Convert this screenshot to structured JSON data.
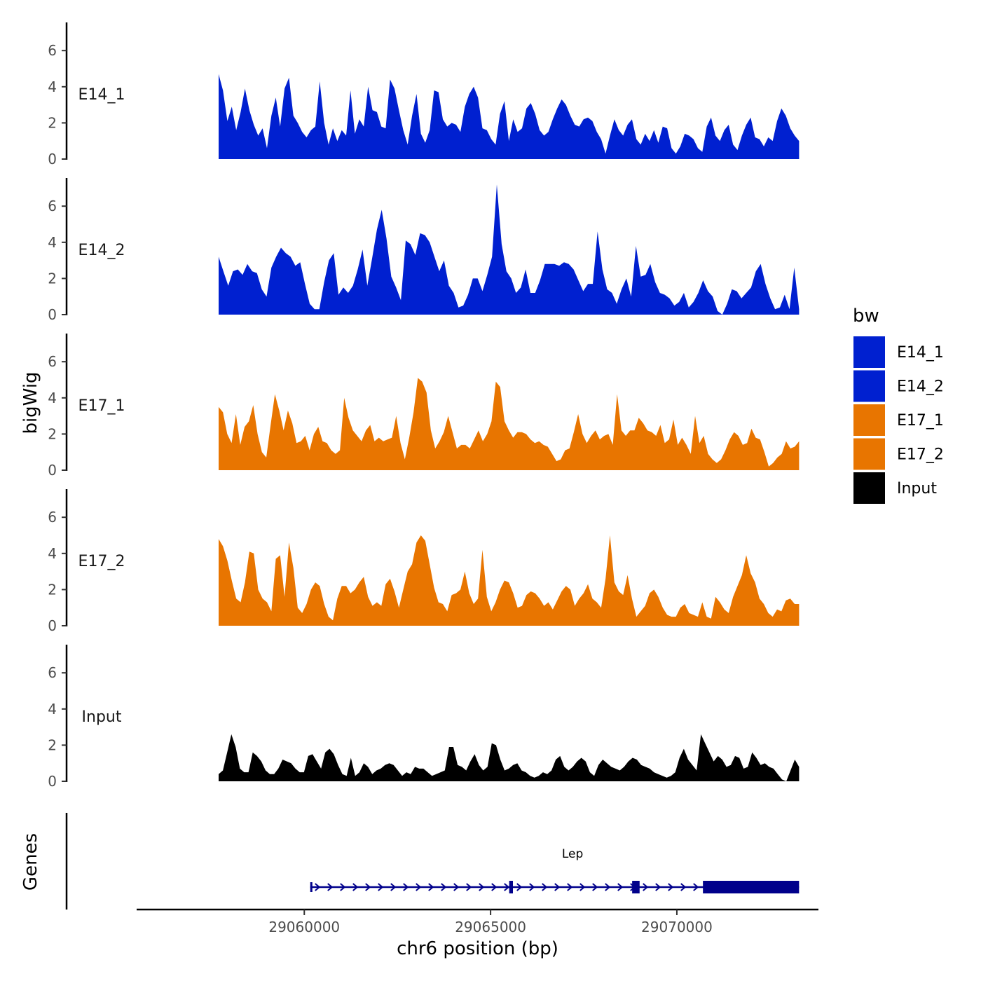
{
  "chart_data": {
    "type": "area",
    "ylabel": "bigWig",
    "xlabel": "chr6 position (bp)",
    "genes_label": "Genes",
    "xlim": [
      29055500,
      29073800
    ],
    "ylim": [
      0,
      7.5
    ],
    "yticks": [
      0,
      2,
      4,
      6
    ],
    "xticks": [
      {
        "value": 29060000,
        "label": "29060000"
      },
      {
        "value": 29065000,
        "label": "29065000"
      },
      {
        "value": 29070000,
        "label": "29070000"
      }
    ],
    "data_start": 29057700,
    "data_end": 29073280,
    "legend": {
      "title": "bw",
      "entries": [
        {
          "name": "E14_1",
          "color": "#0020D0"
        },
        {
          "name": "E14_2",
          "color": "#0020D0"
        },
        {
          "name": "E17_1",
          "color": "#E87500"
        },
        {
          "name": "E17_2",
          "color": "#E87500"
        },
        {
          "name": "Input",
          "color": "#000000"
        }
      ]
    },
    "series": [
      {
        "name": "E14_1",
        "label": "E14_1",
        "color": "#0020D0",
        "values": [
          4.7,
          3.8,
          2.1,
          2.9,
          1.6,
          2.6,
          3.9,
          2.7,
          1.9,
          1.3,
          1.7,
          0.6,
          2.4,
          3.4,
          1.8,
          3.9,
          4.5,
          2.4,
          2.0,
          1.5,
          1.2,
          1.6,
          1.8,
          4.3,
          2.0,
          0.8,
          1.7,
          1.0,
          1.6,
          1.3,
          3.8,
          1.4,
          2.2,
          1.8,
          4.0,
          2.7,
          2.6,
          1.8,
          1.7,
          4.4,
          3.9,
          2.7,
          1.6,
          0.8,
          2.4,
          3.6,
          1.4,
          0.9,
          1.6,
          3.8,
          3.7,
          2.2,
          1.8,
          2.0,
          1.9,
          1.5,
          2.9,
          3.6,
          4.0,
          3.4,
          1.7,
          1.6,
          1.1,
          0.8,
          2.5,
          3.2,
          1.0,
          2.2,
          1.5,
          1.7,
          2.8,
          3.1,
          2.5,
          1.6,
          1.3,
          1.5,
          2.2,
          2.8,
          3.3,
          3.0,
          2.4,
          1.9,
          1.8,
          2.2,
          2.3,
          2.1,
          1.5,
          1.1,
          0.3,
          1.3,
          2.2,
          1.6,
          1.3,
          1.9,
          2.2,
          1.1,
          0.8,
          1.4,
          1.0,
          1.6,
          0.9,
          1.8,
          1.7,
          0.6,
          0.3,
          0.7,
          1.4,
          1.3,
          1.1,
          0.6,
          0.4,
          1.8,
          2.3,
          1.3,
          1.0,
          1.6,
          1.9,
          0.8,
          0.5,
          1.3,
          1.9,
          2.3,
          1.2,
          1.1,
          0.7,
          1.2,
          1.0,
          2.1,
          2.8,
          2.4,
          1.7,
          1.3,
          1.0
        ]
      },
      {
        "name": "E14_2",
        "label": "E14_2",
        "color": "#0020D0",
        "values": [
          3.2,
          2.4,
          1.6,
          2.4,
          2.5,
          2.2,
          2.8,
          2.4,
          2.3,
          1.4,
          1.0,
          2.6,
          3.2,
          3.7,
          3.4,
          3.2,
          2.7,
          2.9,
          1.7,
          0.6,
          0.3,
          0.3,
          1.8,
          3.0,
          3.4,
          1.1,
          1.5,
          1.2,
          1.6,
          2.5,
          3.6,
          1.6,
          3.1,
          4.7,
          5.8,
          4.2,
          2.1,
          1.5,
          0.8,
          4.1,
          3.9,
          3.3,
          4.5,
          4.4,
          4.0,
          3.2,
          2.4,
          3.0,
          1.6,
          1.2,
          0.4,
          0.5,
          1.1,
          2.0,
          2.0,
          1.3,
          2.2,
          3.2,
          7.2,
          3.9,
          2.4,
          2.0,
          1.2,
          1.5,
          2.5,
          1.2,
          1.2,
          1.9,
          2.8,
          2.8,
          2.8,
          2.7,
          2.9,
          2.8,
          2.5,
          1.9,
          1.3,
          1.7,
          1.7,
          4.6,
          2.5,
          1.4,
          1.2,
          0.6,
          1.4,
          2.0,
          1.0,
          3.8,
          2.1,
          2.2,
          2.8,
          1.8,
          1.2,
          1.1,
          0.9,
          0.5,
          0.7,
          1.2,
          0.4,
          0.7,
          1.2,
          1.9,
          1.3,
          1.0,
          0.2,
          0.0,
          0.6,
          1.4,
          1.3,
          0.9,
          1.2,
          1.5,
          2.4,
          2.8,
          1.7,
          0.9,
          0.3,
          0.4,
          1.1,
          0.3,
          2.6,
          0.3
        ]
      },
      {
        "name": "E17_1",
        "label": "E17_1",
        "color": "#E87500",
        "values": [
          3.5,
          3.2,
          2.0,
          1.5,
          3.1,
          1.4,
          2.4,
          2.7,
          3.6,
          2.0,
          1.0,
          0.7,
          2.5,
          4.2,
          3.3,
          2.2,
          3.3,
          2.6,
          1.5,
          1.6,
          1.9,
          1.1,
          2.0,
          2.4,
          1.6,
          1.5,
          1.1,
          0.9,
          1.1,
          4.0,
          2.9,
          2.2,
          1.9,
          1.6,
          2.2,
          2.5,
          1.6,
          1.8,
          1.6,
          1.7,
          1.8,
          3.0,
          1.5,
          0.6,
          1.8,
          3.2,
          5.1,
          4.9,
          4.3,
          2.2,
          1.2,
          1.6,
          2.1,
          3.0,
          2.1,
          1.2,
          1.4,
          1.4,
          1.2,
          1.7,
          2.2,
          1.6,
          2.0,
          2.7,
          4.9,
          4.6,
          2.7,
          2.2,
          1.8,
          2.1,
          2.1,
          2.0,
          1.7,
          1.5,
          1.6,
          1.4,
          1.3,
          0.9,
          0.5,
          0.6,
          1.1,
          1.2,
          2.1,
          3.1,
          2.0,
          1.5,
          1.9,
          2.2,
          1.7,
          1.9,
          2.0,
          1.4,
          4.2,
          2.2,
          1.9,
          2.2,
          2.2,
          2.9,
          2.6,
          2.2,
          2.1,
          1.9,
          2.5,
          1.5,
          1.7,
          2.8,
          1.4,
          1.8,
          1.4,
          0.9,
          3.0,
          1.5,
          1.9,
          0.9,
          0.6,
          0.4,
          0.6,
          1.1,
          1.7,
          2.1,
          1.9,
          1.4,
          1.5,
          2.3,
          1.8,
          1.7,
          1.0,
          0.2,
          0.4,
          0.7,
          0.9,
          1.6,
          1.2,
          1.3,
          1.6
        ]
      },
      {
        "name": "E17_2",
        "label": "E17_2",
        "color": "#E87500",
        "values": [
          4.8,
          4.4,
          3.6,
          2.5,
          1.5,
          1.3,
          2.4,
          4.1,
          4.0,
          2.0,
          1.5,
          1.3,
          0.8,
          3.7,
          3.9,
          1.6,
          4.6,
          3.2,
          1.0,
          0.7,
          1.2,
          2.0,
          2.4,
          2.2,
          1.2,
          0.5,
          0.3,
          1.5,
          2.2,
          2.2,
          1.8,
          2.0,
          2.4,
          2.7,
          1.6,
          1.1,
          1.3,
          1.1,
          2.3,
          2.6,
          1.9,
          1.0,
          2.0,
          3.0,
          3.4,
          4.6,
          5.0,
          4.7,
          3.4,
          2.1,
          1.3,
          1.2,
          0.8,
          1.7,
          1.8,
          2.0,
          3.0,
          1.8,
          1.2,
          1.5,
          4.2,
          1.6,
          0.8,
          1.3,
          2.0,
          2.5,
          2.4,
          1.8,
          1.0,
          1.1,
          1.7,
          1.9,
          1.8,
          1.5,
          1.1,
          1.3,
          0.9,
          1.4,
          1.9,
          2.2,
          2.0,
          1.1,
          1.5,
          1.8,
          2.3,
          1.5,
          1.3,
          1.0,
          2.6,
          5.0,
          2.4,
          1.9,
          1.7,
          2.8,
          1.5,
          0.5,
          0.8,
          1.1,
          1.8,
          2.0,
          1.6,
          1.0,
          0.6,
          0.5,
          0.5,
          1.0,
          1.2,
          0.7,
          0.6,
          0.5,
          1.3,
          0.5,
          0.4,
          1.6,
          1.3,
          0.9,
          0.7,
          1.6,
          2.2,
          2.8,
          3.9,
          2.9,
          2.4,
          1.5,
          1.2,
          0.7,
          0.5,
          0.9,
          0.8,
          1.4,
          1.5,
          1.2,
          1.2
        ]
      },
      {
        "name": "Input",
        "label": "Input",
        "color": "#000000",
        "values": [
          0.4,
          0.6,
          1.6,
          2.6,
          1.9,
          0.7,
          0.5,
          0.5,
          1.6,
          1.4,
          1.1,
          0.6,
          0.4,
          0.4,
          0.7,
          1.2,
          1.1,
          1.0,
          0.7,
          0.5,
          0.5,
          1.4,
          1.5,
          1.1,
          0.7,
          1.6,
          1.8,
          1.5,
          0.9,
          0.4,
          0.3,
          1.3,
          0.3,
          0.5,
          1.0,
          0.8,
          0.4,
          0.6,
          0.7,
          0.9,
          1.0,
          0.9,
          0.6,
          0.3,
          0.5,
          0.4,
          0.8,
          0.7,
          0.7,
          0.5,
          0.3,
          0.4,
          0.5,
          0.6,
          1.9,
          1.9,
          0.9,
          0.8,
          0.6,
          1.1,
          1.5,
          0.9,
          0.6,
          0.8,
          2.1,
          2.0,
          1.2,
          0.6,
          0.7,
          0.9,
          1.0,
          0.6,
          0.5,
          0.3,
          0.2,
          0.3,
          0.5,
          0.4,
          0.6,
          1.2,
          1.4,
          0.8,
          0.6,
          0.8,
          1.1,
          1.3,
          1.1,
          0.5,
          0.3,
          0.9,
          1.2,
          1.0,
          0.8,
          0.7,
          0.6,
          0.8,
          1.1,
          1.3,
          1.2,
          0.9,
          0.8,
          0.7,
          0.5,
          0.4,
          0.3,
          0.2,
          0.3,
          0.5,
          1.3,
          1.8,
          1.2,
          0.9,
          0.6,
          2.6,
          2.1,
          1.6,
          1.1,
          1.4,
          1.2,
          0.8,
          0.9,
          1.4,
          1.3,
          0.7,
          0.8,
          1.6,
          1.3,
          0.9,
          1.0,
          0.8,
          0.7,
          0.4,
          0.1,
          0.0,
          0.6,
          1.2,
          0.8
        ]
      }
    ],
    "gene": {
      "name": "Lep",
      "color": "#00008B",
      "start": 29060160,
      "end": 29073280,
      "exons": [
        {
          "start": 29060160,
          "end": 29060200
        },
        {
          "start": 29065500,
          "end": 29065600
        },
        {
          "start": 29068800,
          "end": 29069000
        },
        {
          "start": 29070700,
          "end": 29073280
        }
      ]
    }
  }
}
